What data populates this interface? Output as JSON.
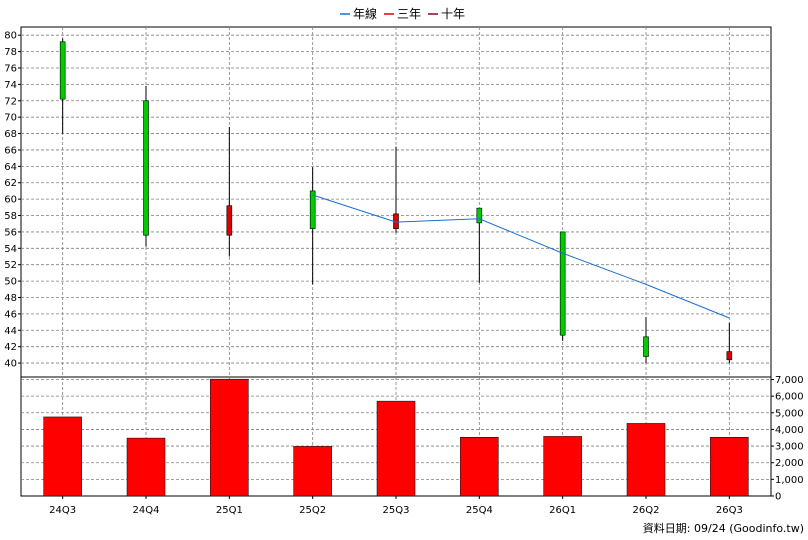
{
  "chart_data": {
    "type": "candlestick",
    "legend": [
      {
        "label": "年線",
        "color": "#1a6fd6"
      },
      {
        "label": "三年",
        "color": "#e00000"
      },
      {
        "label": "十年",
        "color": "#8b0032"
      }
    ],
    "categories": [
      "24Q3",
      "24Q4",
      "25Q1",
      "25Q2",
      "25Q3",
      "25Q4",
      "26Q1",
      "26Q2",
      "26Q3"
    ],
    "candles": [
      {
        "label": "24Q3",
        "open": 72.2,
        "close": 79.2,
        "high": 79.6,
        "low": 68.0,
        "color": "green"
      },
      {
        "label": "24Q4",
        "open": 72.0,
        "close": 55.6,
        "high": 73.8,
        "low": 54.2,
        "color": "green"
      },
      {
        "label": "25Q1",
        "open": 55.6,
        "close": 59.2,
        "high": 68.8,
        "low": 53.0,
        "color": "red"
      },
      {
        "label": "25Q2",
        "open": 56.4,
        "close": 61.0,
        "high": 63.9,
        "low": 49.6,
        "color": "green"
      },
      {
        "label": "25Q3",
        "open": 56.4,
        "close": 58.2,
        "high": 66.4,
        "low": 55.9,
        "color": "red"
      },
      {
        "label": "25Q4",
        "open": 58.9,
        "close": 57.1,
        "high": 58.9,
        "low": 49.8,
        "color": "green"
      },
      {
        "label": "26Q1",
        "open": 56.0,
        "close": 43.4,
        "high": 56.0,
        "low": 42.7,
        "color": "green"
      },
      {
        "label": "26Q2",
        "open": 43.2,
        "close": 40.8,
        "high": 45.6,
        "low": 40.0,
        "color": "green"
      },
      {
        "label": "26Q3",
        "open": 41.4,
        "close": 40.4,
        "high": 44.9,
        "low": 40.0,
        "color": "red"
      }
    ],
    "annual_line": {
      "name": "年線",
      "points": [
        {
          "x": "25Q2",
          "y": 60.5
        },
        {
          "x": "25Q3",
          "y": 57.2
        },
        {
          "x": "25Q4",
          "y": 57.6
        },
        {
          "x": "26Q1",
          "y": 53.4
        },
        {
          "x": "26Q2",
          "y": 49.6
        },
        {
          "x": "26Q3",
          "y": 45.5
        }
      ]
    },
    "price_axis": {
      "min": 38.3,
      "max": 81,
      "ticks": [
        40,
        42,
        44,
        46,
        48,
        50,
        52,
        54,
        56,
        58,
        60,
        62,
        64,
        66,
        68,
        70,
        72,
        74,
        76,
        78,
        80
      ]
    },
    "volume_axis": {
      "min": 0,
      "max": 7000,
      "ticks": [
        0,
        1000,
        2000,
        3000,
        4000,
        5000,
        6000,
        7000
      ],
      "tick_labels": [
        "0",
        "1,000",
        "2,000",
        "3,000",
        "4,000",
        "5,000",
        "6,000",
        "7,000"
      ]
    },
    "volume": [
      4750,
      3480,
      7020,
      2980,
      5700,
      3530,
      3580,
      4360,
      3530
    ],
    "colors": {
      "up": "#00cc00",
      "down": "#dd0000",
      "volume": "#ff0000",
      "grid": "#808080",
      "line": "#1a6fd6"
    },
    "grid": true
  },
  "footer": {
    "credit": "資料日期: 09/24  (Goodinfo.tw)"
  }
}
